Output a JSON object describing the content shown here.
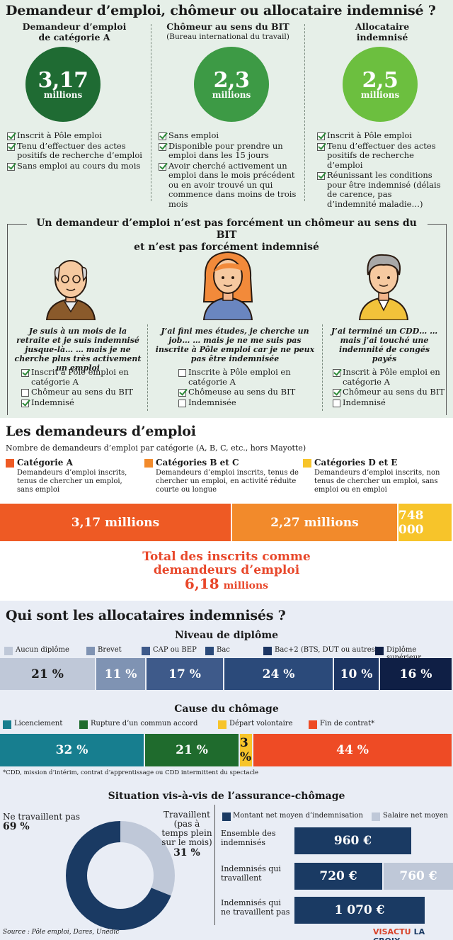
{
  "header": {
    "title": "Demandeur d’emploi, chômeur ou allocataire indemnisé ?"
  },
  "columns": [
    {
      "heading": "Demandeur d’emploi\nde catégorie A",
      "subheading": "",
      "value": "3,17",
      "unit": "millions",
      "color": "#1f6b33",
      "criteria": [
        "Inscrit à Pôle emploi",
        "Tenu d’effectuer des actes positifs de recherche d’emploi",
        "Sans emploi au cours du mois"
      ]
    },
    {
      "heading": "Chômeur au sens du BIT",
      "subheading": "(Bureau international du travail)",
      "value": "2,3",
      "unit": "millions",
      "color": "#3d9a45",
      "criteria": [
        "Sans emploi",
        "Disponible pour prendre un emploi dans les 15 jours",
        "Avoir cherché activement un emploi dans le mois précédent ou en avoir trouvé un qui commence dans moins de trois mois"
      ]
    },
    {
      "heading": "Allocataire\nindemnisé",
      "subheading": "",
      "value": "2,5",
      "unit": "millions",
      "color": "#6cbf3f",
      "criteria": [
        "Inscrit à Pôle emploi",
        "Tenu d’effectuer des actes positifs de recherche d’emploi",
        "Réunissant les conditions pour être indemnisé (délais de carence, pas d’indemnité maladie…)"
      ]
    }
  ],
  "persona_section": {
    "title": "Un demandeur d’emploi n’est pas forcément un chômeur au sens du BIT\net n’est pas forcément indemnisé",
    "personas": [
      {
        "quote": "Je suis à un mois de la retraite et je suis indemnisé jusque-là… … mais je ne cherche plus très activement un emploi",
        "checks": [
          {
            "label": "Inscrit à Pôle emploi en catégorie A",
            "checked": true
          },
          {
            "label": "Chômeur au sens du BIT",
            "checked": false
          },
          {
            "label": "Indemnisé",
            "checked": true
          }
        ]
      },
      {
        "quote": "J’ai fini mes études, je cherche un job… … mais je ne me suis pas inscrite à Pôle emploi car je ne peux pas être indemnisée",
        "checks": [
          {
            "label": "Inscrite à Pôle emploi en catégorie A",
            "checked": false
          },
          {
            "label": "Chômeuse au sens du BIT",
            "checked": true
          },
          {
            "label": "Indemnisée",
            "checked": false
          }
        ]
      },
      {
        "quote": "J’ai terminé un CDD… … mais j’ai touché une indemnité de congés payés",
        "checks": [
          {
            "label": "Inscrit à Pôle emploi en catégorie A",
            "checked": true
          },
          {
            "label": "Chômeur au sens du BIT",
            "checked": true
          },
          {
            "label": "Indemnisé",
            "checked": false
          }
        ]
      }
    ]
  },
  "demandeurs": {
    "title": "Les demandeurs d’emploi",
    "subtitle": "Nombre de demandeurs d’emploi par catégorie (A, B, C, etc., hors Mayotte)",
    "categories": [
      {
        "name": "Catégorie A",
        "desc": "Demandeurs d’emploi inscrits, tenus de chercher un emploi, sans emploi",
        "label": "3,17 millions",
        "color": "#ee5a24"
      },
      {
        "name": "Catégories B et C",
        "desc": "Demandeurs d’emploi inscrits, tenus de chercher un emploi, en activité réduite courte ou longue",
        "label": "2,27 millions",
        "color": "#f28a2b"
      },
      {
        "name": "Catégories D et E",
        "desc": "Demandeurs d’emploi inscrits, non tenus de chercher un emploi, sans emploi ou en emploi",
        "label": "748 000",
        "color": "#f7c42a"
      }
    ],
    "total_line1": "Total des inscrits comme",
    "total_line2": "demandeurs d’emploi",
    "total_value": "6,18",
    "total_unit": "millions"
  },
  "allocataires": {
    "title": "Qui sont les allocataires indemnisés ?",
    "diplome_title": "Niveau de diplôme",
    "cause_title": "Cause du chômage",
    "cause_footnote": "*CDD, mission d’intérim, contrat d’apprentissage ou CDD intermittent du spectacle",
    "situation_title": "Situation vis-à-vis de l’assurance-chômage",
    "donut_left_label": "Ne travaillent pas",
    "donut_left_value": "69 %",
    "donut_right_label": "Travaillent (pas à temps plein sur le mois)",
    "donut_right_value": "31 %",
    "legend_montant": "Montant net moyen d’indemnisation",
    "legend_salaire": "Salaire net moyen"
  },
  "footer": {
    "source": "Source : Pôle emploi, Dares, Unédic",
    "logo_visactu": "VISACTU",
    "logo_lacroix": "LA CROIX"
  },
  "chart_data": [
    {
      "type": "bar",
      "title": "Les demandeurs d’emploi",
      "orientation": "stacked-horizontal",
      "categories": [
        "Catégorie A",
        "Catégories B et C",
        "Catégories D et E"
      ],
      "values": [
        3170000,
        2270000,
        748000
      ],
      "labels": [
        "3,17 millions",
        "2,27 millions",
        "748 000"
      ],
      "colors": [
        "#ee5a24",
        "#f28a2b",
        "#f7c42a"
      ]
    },
    {
      "type": "bar",
      "title": "Niveau de diplôme",
      "orientation": "stacked-horizontal",
      "categories": [
        "Aucun diplôme",
        "Brevet",
        "CAP ou BEP",
        "Bac",
        "Bac+2 (BTS, DUT ou autres)",
        "Diplôme supérieur"
      ],
      "values": [
        21,
        11,
        17,
        24,
        10,
        16
      ],
      "labels": [
        "21 %",
        "11 %",
        "17 %",
        "24 %",
        "10 %",
        "16 %"
      ],
      "colors": [
        "#bfc8d8",
        "#7f93b3",
        "#3e5a8a",
        "#2b4a7a",
        "#1c3563",
        "#0f1f45"
      ],
      "text_colors": [
        "#1a1a1a",
        "#ffffff",
        "#ffffff",
        "#ffffff",
        "#ffffff",
        "#ffffff"
      ]
    },
    {
      "type": "bar",
      "title": "Cause du chômage",
      "orientation": "stacked-horizontal",
      "categories": [
        "Licenciement",
        "Rupture d’un commun accord",
        "Départ volontaire",
        "Fin de contrat*"
      ],
      "values": [
        32,
        21,
        3,
        44
      ],
      "labels": [
        "32 %",
        "21 %",
        "3 %",
        "44 %"
      ],
      "colors": [
        "#177e8f",
        "#1f6b2d",
        "#f7c42a",
        "#ee4b25"
      ],
      "text_colors": [
        "#ffffff",
        "#ffffff",
        "#1a1a1a",
        "#ffffff"
      ]
    },
    {
      "type": "pie",
      "title": "Situation vis-à-vis de l’assurance-chômage",
      "categories": [
        "Ne travaillent pas",
        "Travaillent (pas à temps plein sur le mois)"
      ],
      "values": [
        69,
        31
      ],
      "colors": [
        "#1a3a63",
        "#bfc8d8"
      ]
    },
    {
      "type": "bar",
      "orientation": "horizontal",
      "categories": [
        "Ensemble des indemnisés",
        "Indemnisés qui travaillent",
        "Indemnisés qui ne travaillent pas"
      ],
      "series": [
        {
          "name": "Montant net moyen d’indemnisation",
          "values": [
            960,
            720,
            1070
          ],
          "labels": [
            "960 €",
            "720 €",
            "1 070 €"
          ],
          "color": "#1a3a63"
        },
        {
          "name": "Salaire net moyen",
          "values": [
            null,
            760,
            null
          ],
          "labels": [
            "",
            "760 €",
            ""
          ],
          "color": "#bfc8d8"
        }
      ],
      "xlim": [
        0,
        1300
      ]
    }
  ]
}
